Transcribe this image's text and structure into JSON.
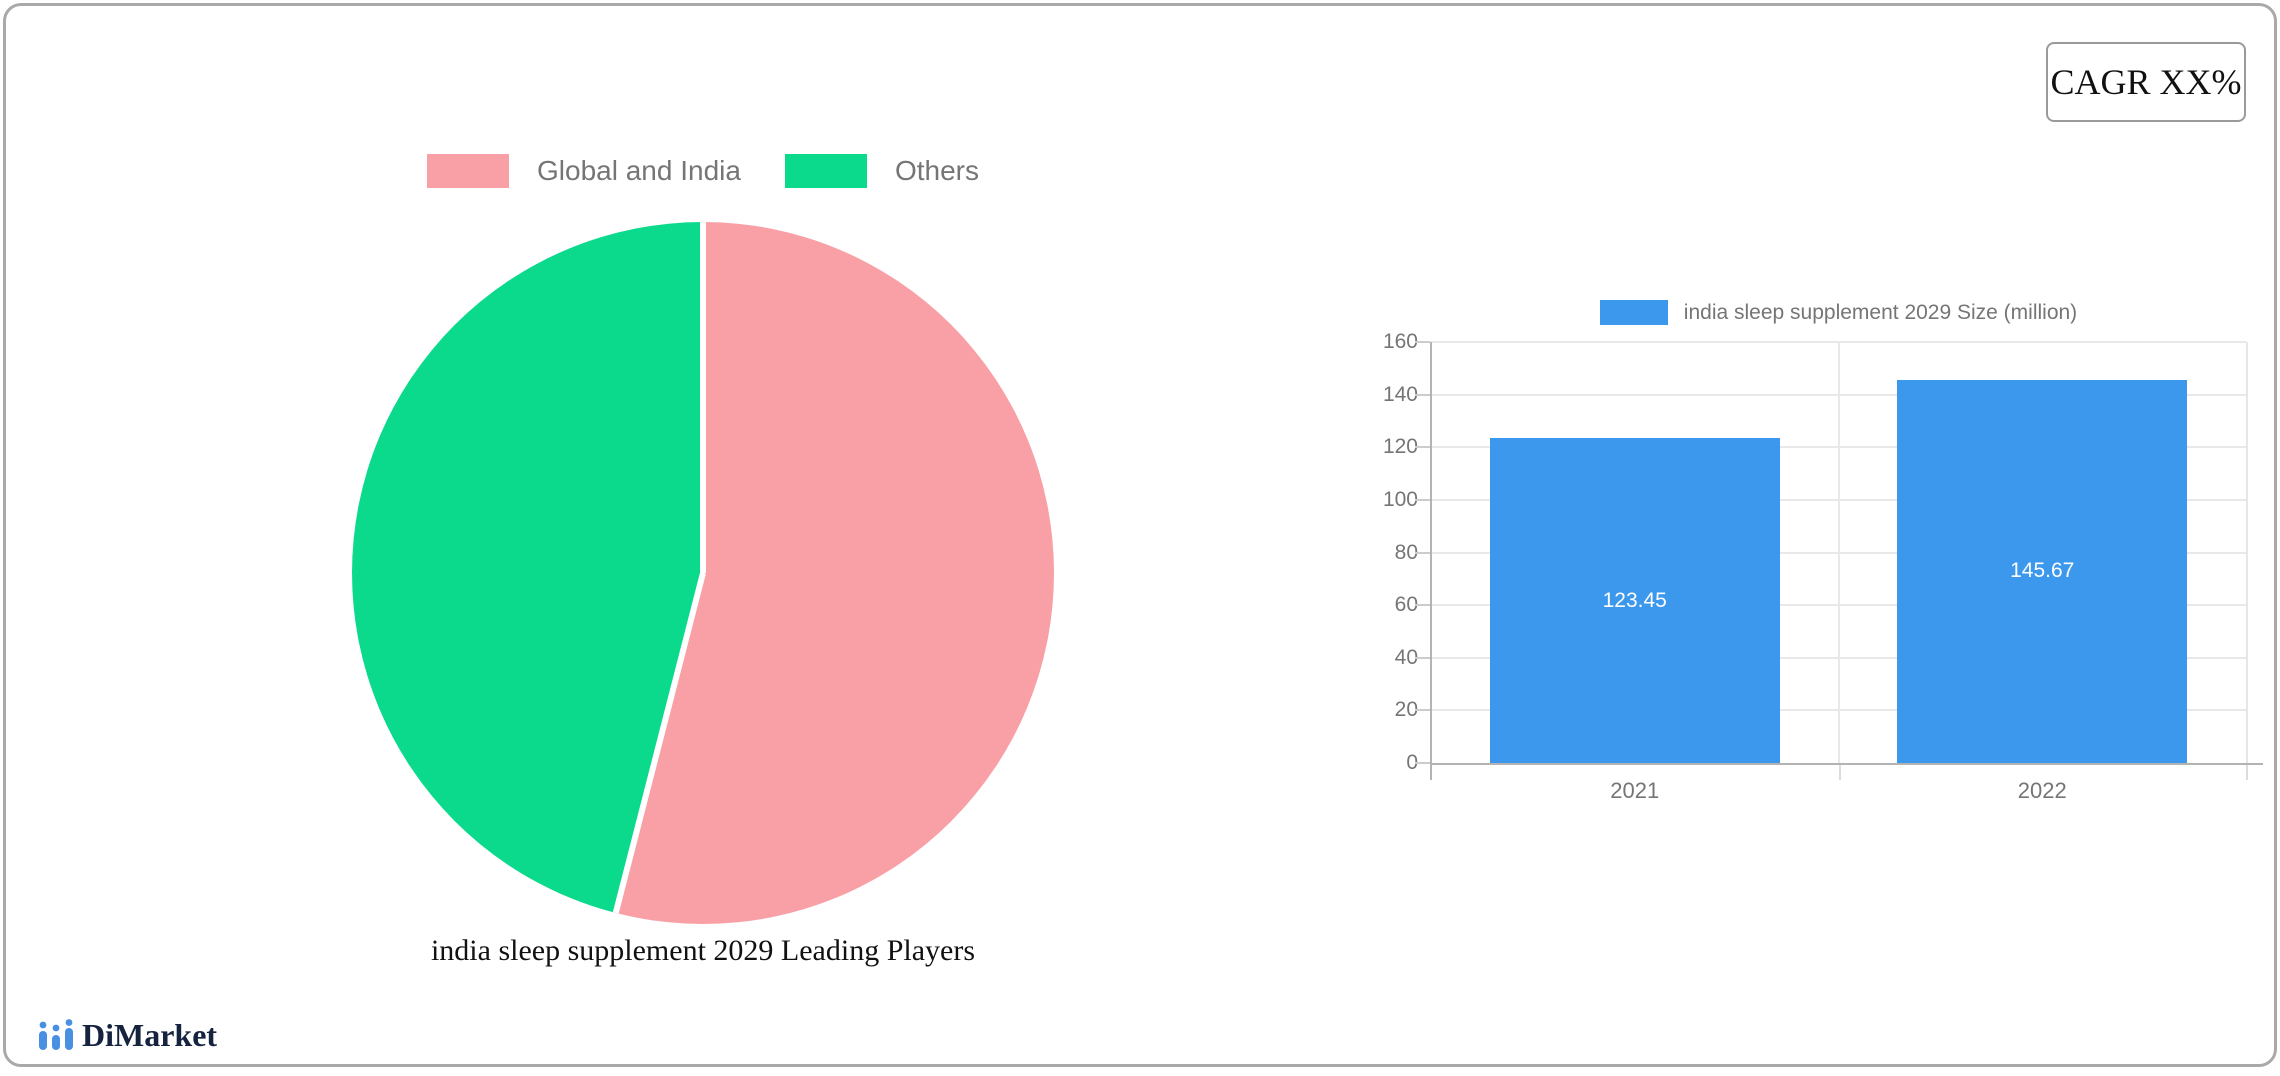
{
  "cagr": {
    "label": "CAGR XX%"
  },
  "logo": {
    "text": "DiMarket",
    "icon": "bar-chart-logo-icon",
    "icon_color": "#4a90e2",
    "text_color": "#15233f"
  },
  "chart_data": [
    {
      "type": "pie",
      "title": "india sleep supplement 2029 Leading Players",
      "labels": [
        "Global and India",
        "Others"
      ],
      "values": [
        54,
        46
      ],
      "colors": [
        "#f8a0a6",
        "#0bda8d"
      ],
      "separator_color": "#ffffff",
      "legend_position": "top",
      "legend_text_color": "#757575"
    },
    {
      "type": "bar",
      "legend": "india sleep supplement 2029 Size (million)",
      "categories": [
        "2021",
        "2022"
      ],
      "values": [
        123.45,
        145.67
      ],
      "bar_color": "#3b98ed",
      "value_label_color": "#ffffff",
      "ylim": [
        0,
        160
      ],
      "y_ticks": [
        0,
        20,
        40,
        60,
        80,
        100,
        120,
        140,
        160
      ],
      "grid": true,
      "axis_text_color": "#757575"
    }
  ]
}
